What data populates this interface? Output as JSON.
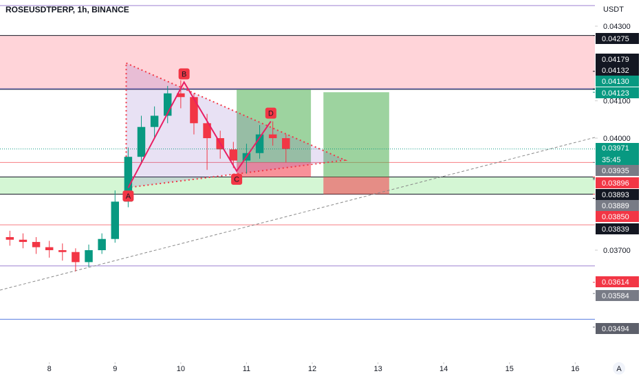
{
  "header": {
    "title": "ROSEUSDTPERP, 1h, BINANCE",
    "currency": "USDT",
    "auto_scale": "A"
  },
  "chart_data": {
    "type": "candlestick",
    "x": [
      7.4,
      7.6,
      7.8,
      8.0,
      8.2,
      8.4,
      8.6,
      8.8,
      9.0,
      9.2,
      9.4,
      9.6,
      9.8,
      10.0,
      10.2,
      10.4,
      10.6,
      10.8,
      11.0,
      11.2,
      11.4,
      11.6
    ],
    "open": [
      0.03735,
      0.03728,
      0.03722,
      0.03708,
      0.037,
      0.03695,
      0.03668,
      0.037,
      0.0373,
      0.0383,
      0.0395,
      0.0403,
      0.0406,
      0.0412,
      0.0411,
      0.0404,
      0.04,
      0.0397,
      0.0394,
      0.0396,
      0.0401,
      0.04
    ],
    "high": [
      0.03752,
      0.03745,
      0.03735,
      0.03725,
      0.03718,
      0.03705,
      0.03715,
      0.03745,
      0.0386,
      0.03975,
      0.0406,
      0.04085,
      0.0414,
      0.04155,
      0.0412,
      0.04065,
      0.0402,
      0.0399,
      0.03985,
      0.04035,
      0.04045,
      0.0401
    ],
    "low": [
      0.03712,
      0.03705,
      0.0369,
      0.0368,
      0.03672,
      0.03643,
      0.03655,
      0.0369,
      0.0372,
      0.03815,
      0.0393,
      0.04,
      0.0404,
      0.0408,
      0.0401,
      0.03915,
      0.03945,
      0.0392,
      0.03905,
      0.03945,
      0.0398,
      0.03935
    ],
    "close": [
      0.03728,
      0.03722,
      0.03708,
      0.037,
      0.03695,
      0.03668,
      0.037,
      0.0373,
      0.0383,
      0.0395,
      0.0403,
      0.0406,
      0.0412,
      0.0411,
      0.0404,
      0.04,
      0.0397,
      0.0394,
      0.0396,
      0.0401,
      0.04,
      0.03971
    ],
    "up_color": "#089981",
    "down_color": "#f23645",
    "xlim": [
      7.25,
      16.3
    ],
    "xticks": [
      8,
      9,
      10,
      11,
      12,
      13,
      14,
      15,
      16
    ],
    "ylim": [
      0.034,
      0.0437
    ],
    "yticks": [
      {
        "value": 0.043,
        "label": "0.04300"
      },
      {
        "value": 0.041,
        "label": "0.04100"
      },
      {
        "value": 0.04,
        "label": "0.04000"
      },
      {
        "value": 0.037,
        "label": "0.03700"
      }
    ],
    "levels": [
      {
        "value": 0.04355,
        "color": "#9c7fd0"
      },
      {
        "value": 0.04275,
        "color": "#131722"
      },
      {
        "value": 0.04132,
        "color": "#1a237e"
      },
      {
        "value": 0.0413,
        "color": "#787b86"
      },
      {
        "value": 0.03935,
        "color": "#f77c80"
      },
      {
        "value": 0.03896,
        "color": "#131722"
      },
      {
        "value": 0.0385,
        "color": "#131722"
      },
      {
        "value": 0.03768,
        "color": "#f77c80"
      },
      {
        "value": 0.03658,
        "color": "#9c7fd0"
      },
      {
        "value": 0.03515,
        "color": "#5b7fe0"
      }
    ],
    "zones": [
      {
        "y": [
          0.04132,
          0.04275
        ],
        "color": "#ffcdd2"
      },
      {
        "y": [
          0.0385,
          0.03896
        ],
        "color": "#ccf5cc"
      }
    ],
    "position_boxes": [
      {
        "x": [
          10.85,
          11.98
        ],
        "target": 0.0413,
        "entry": 0.03935,
        "stop": 0.03896
      },
      {
        "x": [
          12.17,
          13.17
        ],
        "target": 0.04123,
        "entry": 0.03896,
        "stop": 0.0385
      }
    ],
    "triangle": {
      "x": [
        9.17,
        12.5,
        9.17
      ],
      "y": [
        0.04201,
        0.03941,
        0.03867
      ]
    },
    "pattern": {
      "labels": [
        "A",
        "B",
        "C",
        "D"
      ],
      "x": [
        9.2,
        10.05,
        10.85,
        11.37
      ],
      "y": [
        0.03867,
        0.0415,
        0.03912,
        0.04045
      ]
    },
    "trendline": {
      "x": [
        7.25,
        16.3
      ],
      "y": [
        0.03593,
        0.04002
      ]
    },
    "last_price": {
      "value": 0.03971,
      "label": "0.03971",
      "countdown": "35:45"
    },
    "price_labels": [
      {
        "value": 0.04275,
        "label": "0.04275",
        "color": "#131722"
      },
      {
        "value": 0.04179,
        "label": "0.04179",
        "color": "#131722"
      },
      {
        "value": 0.04132,
        "label": "0.04132",
        "color": "#131722"
      },
      {
        "value": 0.0413,
        "label": "0.04130",
        "color": "#089981"
      },
      {
        "value": 0.04123,
        "label": "0.04123",
        "color": "#089981"
      },
      {
        "value": 0.03935,
        "label": "0.03935",
        "color": "#787b86"
      },
      {
        "value": 0.03896,
        "label": "0.03896",
        "color": "#f23645"
      },
      {
        "value": 0.03893,
        "label": "0.03893",
        "color": "#131722"
      },
      {
        "value": 0.03889,
        "label": "0.03889",
        "color": "#787b86"
      },
      {
        "value": 0.0385,
        "label": "0.03850",
        "color": "#f23645"
      },
      {
        "value": 0.03839,
        "label": "0.03839",
        "color": "#131722"
      },
      {
        "value": 0.03614,
        "label": "0.03614",
        "color": "#f23645"
      },
      {
        "value": 0.03584,
        "label": "0.03584",
        "color": "#787b86"
      },
      {
        "value": 0.03494,
        "label": "0.03494",
        "color": "#5d606b"
      }
    ]
  }
}
